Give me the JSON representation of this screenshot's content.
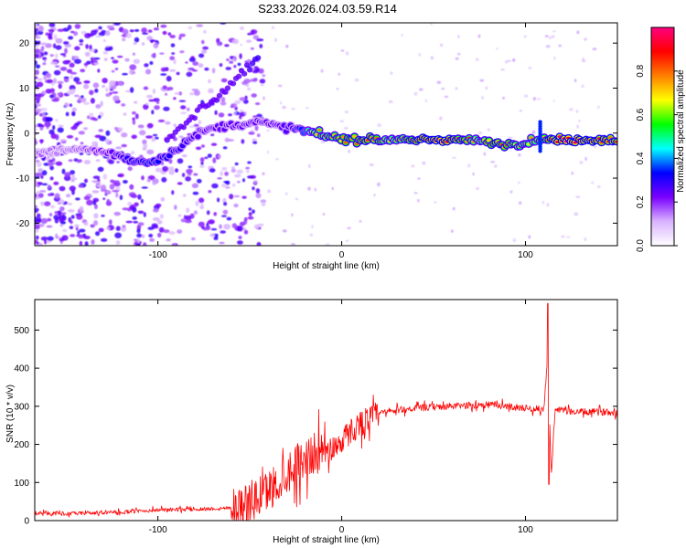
{
  "title": "S233.2026.024.03.59.R14",
  "chart_data": [
    {
      "type": "heatmap",
      "panel": "spectrogram",
      "xlabel": "Height of straight line (km)",
      "ylabel": "Frequency (Hz)",
      "xlim": [
        -167,
        150
      ],
      "ylim": [
        -25,
        24.5
      ],
      "x_ticks": [
        -100,
        0,
        100
      ],
      "x_tick_labels": [
        "-100",
        "0",
        "100"
      ],
      "y_ticks": [
        -20,
        -10,
        0,
        10,
        20
      ],
      "y_tick_labels": [
        "-20",
        "-10",
        "0",
        "10",
        "20"
      ],
      "colorbar": {
        "label": "Normalized spectral amplitude",
        "range": [
          0.0,
          1.0
        ],
        "ticks": [
          0.0,
          0.2,
          0.4,
          0.6,
          0.8
        ],
        "tick_labels": [
          "0.0",
          "0.2",
          "0.4",
          "0.6",
          "0.8"
        ],
        "colors": [
          "#ffffff",
          "#d9b3ff",
          "#7a00ff",
          "#0000ff",
          "#00ffff",
          "#00ff00",
          "#ffff00",
          "#ff7f00",
          "#ff0000",
          "#ff0080"
        ]
      },
      "ridge": {
        "description": "dominant-frequency track",
        "x": [
          -167,
          -155,
          -140,
          -125,
          -115,
          -105,
          -95,
          -85,
          -75,
          -65,
          -55,
          -45,
          -35,
          -25,
          -15,
          -5,
          5,
          15,
          25,
          35,
          45,
          55,
          65,
          75,
          85,
          95,
          105,
          115,
          125,
          135,
          150
        ],
        "freq": [
          -4.5,
          -4,
          -3.5,
          -4.5,
          -6,
          -6.5,
          -5,
          -2,
          0.5,
          1.5,
          2,
          2.5,
          1.5,
          1,
          0,
          -1,
          -1.5,
          -1.5,
          -1.5,
          -1.5,
          -1.5,
          -1.5,
          -1.5,
          -1.8,
          -2.5,
          -2.5,
          -1.5,
          -1.5,
          -1.5,
          -1.5,
          -1.5
        ],
        "amplitude": [
          0.25,
          0.2,
          0.25,
          0.35,
          0.45,
          0.5,
          0.45,
          0.4,
          0.35,
          0.35,
          0.35,
          0.35,
          0.35,
          0.4,
          0.7,
          0.75,
          0.8,
          0.85,
          0.7,
          0.75,
          0.9,
          0.95,
          0.8,
          0.7,
          0.85,
          0.75,
          0.7,
          0.9,
          0.95,
          0.9,
          0.85
        ]
      },
      "branch": {
        "description": "secondary rising feature",
        "x": [
          -95,
          -85,
          -75,
          -65,
          -55,
          -45
        ],
        "freq": [
          -2,
          2,
          6,
          9,
          13,
          17
        ],
        "amplitude": [
          0.3,
          0.3,
          0.3,
          0.3,
          0.3,
          0.35
        ]
      }
    },
    {
      "type": "line",
      "panel": "snr",
      "xlabel": "Height of straight line (km)",
      "ylabel": "SNR (10 * v/v)",
      "xlim": [
        -167,
        150
      ],
      "ylim": [
        0,
        580
      ],
      "x_ticks": [
        -100,
        0,
        100
      ],
      "x_tick_labels": [
        "-100",
        "0",
        "100"
      ],
      "y_ticks": [
        0,
        100,
        200,
        300,
        400,
        500
      ],
      "y_tick_labels": [
        "0",
        "100",
        "200",
        "300",
        "400",
        "500"
      ],
      "color": "#ff0000",
      "trend": {
        "x": [
          -167,
          -150,
          -120,
          -100,
          -80,
          -65,
          -55,
          -45,
          -35,
          -25,
          -15,
          -5,
          0,
          5,
          10,
          20,
          30,
          40,
          60,
          80,
          100,
          110,
          112,
          114,
          116,
          130,
          150
        ],
        "y": [
          20,
          18,
          22,
          28,
          30,
          32,
          38,
          60,
          100,
          150,
          175,
          190,
          210,
          235,
          255,
          280,
          290,
          295,
          300,
          305,
          295,
          292,
          430,
          120,
          290,
          285,
          285
        ]
      },
      "noise_amplitude": [
        {
          "from": -167,
          "to": -60,
          "amp": 10
        },
        {
          "from": -60,
          "to": -10,
          "amp": 110
        },
        {
          "from": -10,
          "to": 20,
          "amp": 70
        },
        {
          "from": 20,
          "to": 150,
          "amp": 18
        }
      ],
      "events": [
        {
          "x": 112.5,
          "y_peak": 570,
          "y_trough": 95
        }
      ]
    }
  ]
}
